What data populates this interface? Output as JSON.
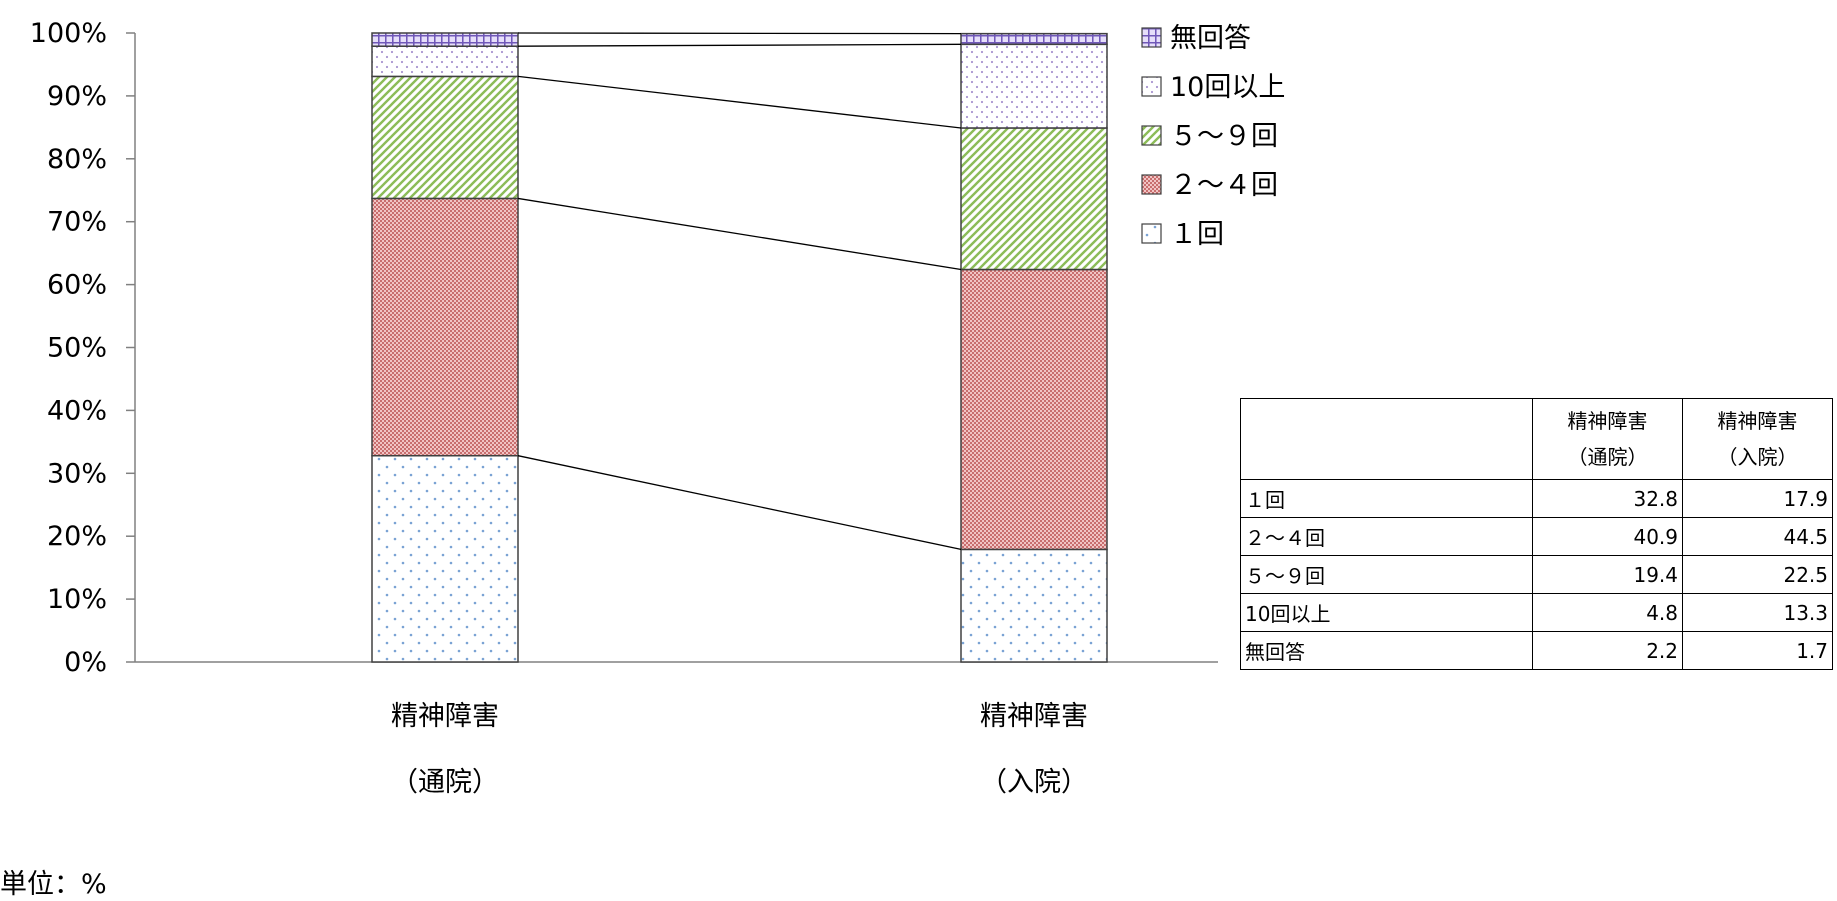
{
  "chart_data": {
    "type": "bar",
    "stacked": true,
    "percent": true,
    "categories": [
      "精神障害（通院）",
      "精神障害（入院）"
    ],
    "category_lines": [
      [
        "精神障害",
        "（通院）"
      ],
      [
        "精神障害",
        "（入院）"
      ]
    ],
    "series": [
      {
        "name": "1回",
        "values": [
          32.8,
          17.9
        ],
        "color": "#8fb0d8",
        "pattern": "dots"
      },
      {
        "name": "2～4回",
        "values": [
          40.9,
          44.5
        ],
        "color": "#d98c8c",
        "pattern": "checker"
      },
      {
        "name": "5～9回",
        "values": [
          19.4,
          22.5
        ],
        "color": "#9cc46a",
        "pattern": "diagonal"
      },
      {
        "name": "10回以上",
        "values": [
          4.8,
          13.3
        ],
        "color": "#b0a0d0",
        "pattern": "dots-dense"
      },
      {
        "name": "無回答",
        "values": [
          2.2,
          1.7
        ],
        "color": "#8070b8",
        "pattern": "grid"
      }
    ],
    "legend_order": [
      "無回答",
      "10回以上",
      "5～9回",
      "2～4回",
      "1回"
    ],
    "legend_labels": [
      "無回答",
      "10回以上",
      "５～９回",
      "２～４回",
      "１回"
    ],
    "legend_position": "top-right",
    "yticks": [
      "0%",
      "10%",
      "20%",
      "30%",
      "40%",
      "50%",
      "60%",
      "70%",
      "80%",
      "90%",
      "100%"
    ],
    "ylim": [
      0,
      100
    ],
    "series_lines": true,
    "grid": false
  },
  "unit_label": "単位：%",
  "table": {
    "headers": [
      [
        "精神障害",
        "（通院）"
      ],
      [
        "精神障害",
        "（入院）"
      ]
    ],
    "rows": [
      {
        "label": "１回",
        "a": "32.8",
        "b": "17.9"
      },
      {
        "label": "２～４回",
        "a": "40.9",
        "b": "44.5"
      },
      {
        "label": "５～９回",
        "a": "19.4",
        "b": "22.5"
      },
      {
        "label": "10回以上",
        "a": "4.8",
        "b": "13.3"
      },
      {
        "label": "無回答",
        "a": "2.2",
        "b": "1.7"
      }
    ]
  }
}
